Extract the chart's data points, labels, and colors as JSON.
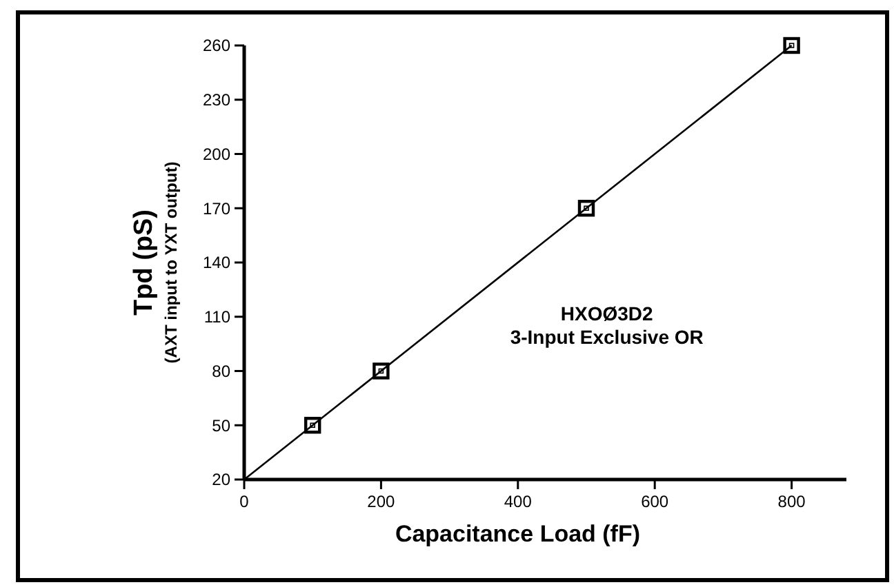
{
  "chart_data": {
    "type": "line",
    "xlabel": "Capacitance Load  (fF)",
    "ylabel": "Tpd  (pS)\n(AXT input to YXT output)",
    "annotations": [
      "HXOØ3D2",
      "3-Input Exclusive OR"
    ],
    "series": [
      {
        "color": "#000000",
        "x": [
          0,
          800
        ],
        "values": [
          20,
          260
        ]
      },
      {
        "type": "scatter",
        "color": "#000000",
        "x": [
          100,
          200,
          500,
          800
        ],
        "values": [
          50,
          80,
          170,
          260
        ],
        "marker": "square"
      }
    ],
    "xlim": [
      0,
      880
    ],
    "xticks": [
      0,
      200,
      400,
      600,
      800
    ],
    "ylim": [
      20,
      260
    ],
    "yticks": [
      20,
      50,
      80,
      110,
      140,
      170,
      200,
      230,
      260
    ],
    "grid": false
  }
}
